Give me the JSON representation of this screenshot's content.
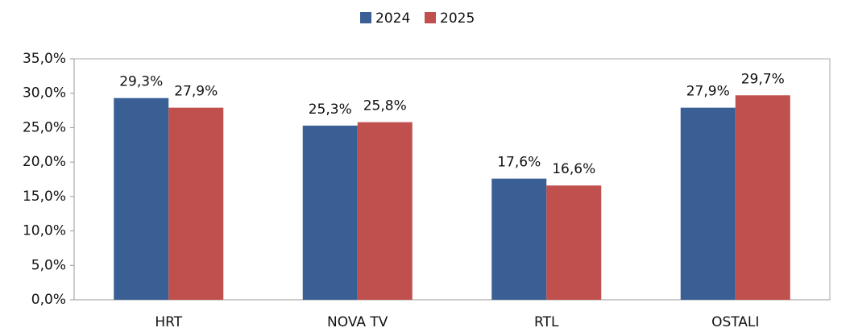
{
  "chart_data": {
    "type": "bar",
    "categories": [
      "HRT",
      "NOVA TV",
      "RTL",
      "OSTALI"
    ],
    "series": [
      {
        "name": "2024",
        "color": "#3a5f94",
        "values": [
          29.3,
          25.3,
          17.6,
          27.9
        ],
        "value_labels": [
          "29,3%",
          "25,3%",
          "17,6%",
          "27,9%"
        ]
      },
      {
        "name": "2025",
        "color": "#c0504d",
        "values": [
          27.9,
          25.8,
          16.6,
          29.7
        ],
        "value_labels": [
          "27,9%",
          "25,8%",
          "16,6%",
          "29,7%"
        ]
      }
    ],
    "ylim": [
      0,
      35
    ],
    "yticks": [
      {
        "value": 0,
        "label": "0,0%"
      },
      {
        "value": 5,
        "label": "5,0%"
      },
      {
        "value": 10,
        "label": "10,0%"
      },
      {
        "value": 15,
        "label": "15,0%"
      },
      {
        "value": 20,
        "label": "20,0%"
      },
      {
        "value": 25,
        "label": "25,0%"
      },
      {
        "value": 30,
        "label": "30,0%"
      },
      {
        "value": 35,
        "label": "35,0%"
      }
    ],
    "grid": false,
    "legend": "top"
  }
}
